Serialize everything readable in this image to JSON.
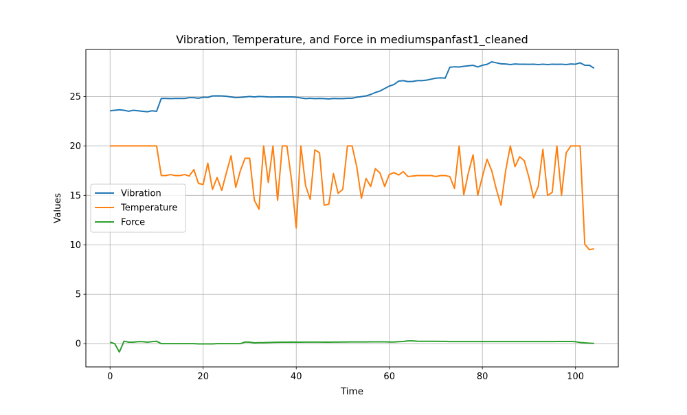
{
  "chart_data": {
    "type": "line",
    "title": "Vibration, Temperature, and Force in mediumspanfast1_cleaned",
    "xlabel": "Time",
    "ylabel": "Values",
    "xlim": [
      -5.2,
      109.2
    ],
    "ylim": [
      -2.35,
      29.75
    ],
    "xticks": [
      0,
      20,
      40,
      60,
      80,
      100
    ],
    "yticks": [
      0,
      5,
      10,
      15,
      20,
      25
    ],
    "grid": true,
    "legend_position": "center-left",
    "x": [
      0,
      1,
      2,
      3,
      4,
      5,
      6,
      7,
      8,
      9,
      10,
      11,
      12,
      13,
      14,
      15,
      16,
      17,
      18,
      19,
      20,
      21,
      22,
      23,
      24,
      25,
      26,
      27,
      28,
      29,
      30,
      31,
      32,
      33,
      34,
      35,
      36,
      37,
      38,
      39,
      40,
      41,
      42,
      43,
      44,
      45,
      46,
      47,
      48,
      49,
      50,
      51,
      52,
      53,
      54,
      55,
      56,
      57,
      58,
      59,
      60,
      61,
      62,
      63,
      64,
      65,
      66,
      67,
      68,
      69,
      70,
      71,
      72,
      73,
      74,
      75,
      76,
      77,
      78,
      79,
      80,
      81,
      82,
      83,
      84,
      85,
      86,
      87,
      88,
      89,
      90,
      91,
      92,
      93,
      94,
      95,
      96,
      97,
      98,
      99,
      100,
      101,
      102,
      103,
      104
    ],
    "series": [
      {
        "name": "Vibration",
        "color": "#1f77b4",
        "values": [
          23.55,
          23.6,
          23.65,
          23.6,
          23.5,
          23.6,
          23.55,
          23.5,
          23.45,
          23.55,
          23.5,
          24.8,
          24.8,
          24.78,
          24.8,
          24.8,
          24.8,
          24.88,
          24.88,
          24.82,
          24.92,
          24.9,
          25.05,
          25.06,
          25.05,
          25.02,
          24.95,
          24.88,
          24.9,
          24.95,
          25.0,
          24.95,
          25.0,
          24.98,
          24.95,
          24.94,
          24.96,
          24.95,
          24.95,
          24.95,
          24.92,
          24.85,
          24.78,
          24.82,
          24.78,
          24.8,
          24.78,
          24.75,
          24.8,
          24.78,
          24.78,
          24.82,
          24.82,
          24.92,
          24.98,
          25.05,
          25.2,
          25.4,
          25.55,
          25.8,
          26.05,
          26.2,
          26.55,
          26.6,
          26.5,
          26.52,
          26.6,
          26.6,
          26.65,
          26.75,
          26.85,
          26.88,
          26.85,
          27.95,
          28.0,
          27.98,
          28.05,
          28.1,
          28.15,
          27.98,
          28.15,
          28.25,
          28.5,
          28.4,
          28.3,
          28.28,
          28.22,
          28.28,
          28.26,
          28.26,
          28.25,
          28.26,
          28.22,
          28.26,
          28.22,
          28.26,
          28.25,
          28.26,
          28.22,
          28.28,
          28.26,
          28.4,
          28.15,
          28.15,
          27.85
        ]
      },
      {
        "name": "Temperature",
        "color": "#ff7f0e",
        "values": [
          20.0,
          20.0,
          20.0,
          20.0,
          20.0,
          20.0,
          20.0,
          20.0,
          20.0,
          20.0,
          20.0,
          17.0,
          17.0,
          17.1,
          17.0,
          17.0,
          17.1,
          16.95,
          17.6,
          16.2,
          16.1,
          18.25,
          15.6,
          16.8,
          15.5,
          17.3,
          19.0,
          15.8,
          17.5,
          18.75,
          18.75,
          14.5,
          13.6,
          20.0,
          16.3,
          20.0,
          14.5,
          20.0,
          20.0,
          16.5,
          11.7,
          20.0,
          16.0,
          14.6,
          19.6,
          19.3,
          14.0,
          14.1,
          17.2,
          15.2,
          15.6,
          20.0,
          20.0,
          17.9,
          14.7,
          16.7,
          15.9,
          17.7,
          17.25,
          15.9,
          17.1,
          17.3,
          17.05,
          17.4,
          16.9,
          16.95,
          17.0,
          17.0,
          17.0,
          17.0,
          16.9,
          17.0,
          17.0,
          16.9,
          15.7,
          20.0,
          15.05,
          17.3,
          19.1,
          15.0,
          16.9,
          18.65,
          17.5,
          15.6,
          14.0,
          17.5,
          20.0,
          17.9,
          18.9,
          18.5,
          16.8,
          14.75,
          15.9,
          19.65,
          15.0,
          15.3,
          20.0,
          15.0,
          19.3,
          20.0,
          20.0,
          20.0,
          10.05,
          9.5,
          9.6
        ]
      },
      {
        "name": "Force",
        "color": "#2ca02c",
        "values": [
          0.15,
          0.0,
          -0.85,
          0.25,
          0.15,
          0.15,
          0.2,
          0.2,
          0.15,
          0.2,
          0.25,
          0.0,
          0.0,
          0.0,
          0.0,
          0.0,
          0.0,
          0.0,
          0.0,
          -0.02,
          -0.02,
          -0.02,
          -0.02,
          0.0,
          0.0,
          0.0,
          0.0,
          0.0,
          0.0,
          0.17,
          0.15,
          0.08,
          0.1,
          0.1,
          0.12,
          0.13,
          0.14,
          0.15,
          0.15,
          0.16,
          0.15,
          0.15,
          0.16,
          0.16,
          0.16,
          0.16,
          0.15,
          0.15,
          0.16,
          0.16,
          0.17,
          0.17,
          0.18,
          0.18,
          0.18,
          0.18,
          0.19,
          0.19,
          0.19,
          0.19,
          0.17,
          0.17,
          0.2,
          0.22,
          0.28,
          0.28,
          0.25,
          0.24,
          0.24,
          0.24,
          0.24,
          0.23,
          0.23,
          0.21,
          0.21,
          0.21,
          0.21,
          0.21,
          0.21,
          0.21,
          0.21,
          0.21,
          0.21,
          0.21,
          0.21,
          0.21,
          0.21,
          0.21,
          0.21,
          0.21,
          0.21,
          0.21,
          0.21,
          0.21,
          0.21,
          0.21,
          0.22,
          0.22,
          0.22,
          0.22,
          0.2,
          0.12,
          0.08,
          0.05,
          0.02
        ]
      }
    ]
  }
}
